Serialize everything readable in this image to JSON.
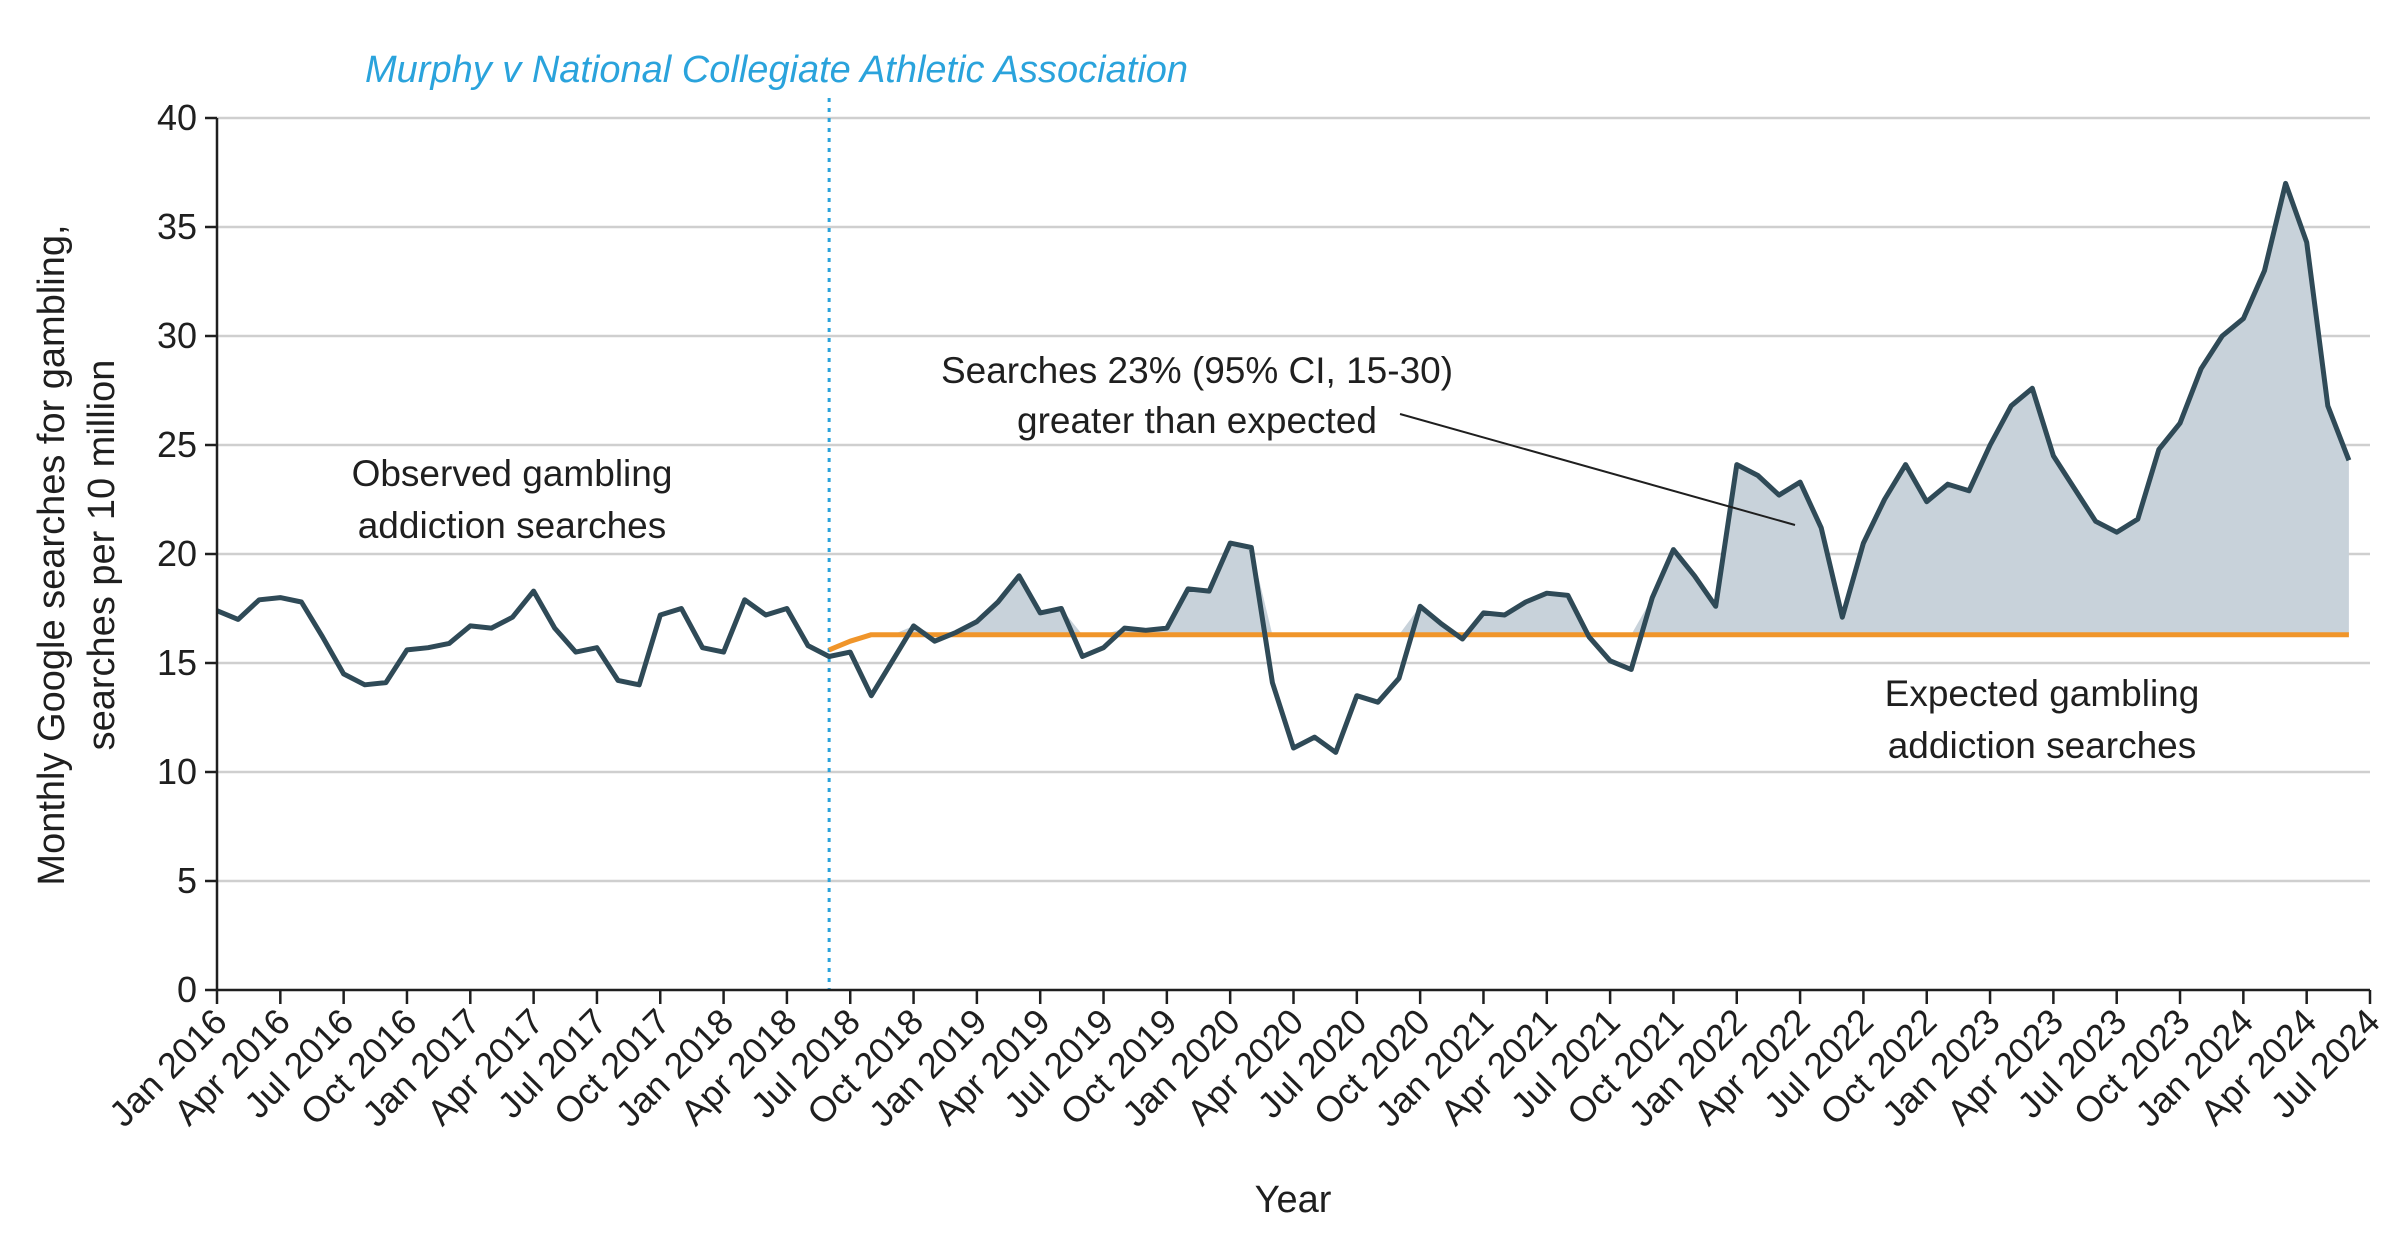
{
  "chart_data": {
    "type": "line",
    "title": "",
    "xlabel": "Year",
    "ylabel_lines": [
      "Monthly Google searches for gambling,",
      "searches per 10 million"
    ],
    "ylim": [
      0,
      40
    ],
    "yticks": [
      0,
      5,
      10,
      15,
      20,
      25,
      30,
      35,
      40
    ],
    "grid": true,
    "start": "2016-01",
    "xtick_labels": [
      "Jan 2016",
      "Apr 2016",
      "Jul 2016",
      "Oct 2016",
      "Jan 2017",
      "Apr 2017",
      "Jul 2017",
      "Oct 2017",
      "Jan 2018",
      "Apr 2018",
      "Jul 2018",
      "Oct 2018",
      "Jan 2019",
      "Apr 2019",
      "Jul 2019",
      "Oct 2019",
      "Jan 2020",
      "Apr 2020",
      "Jul 2020",
      "Oct 2020",
      "Jan 2021",
      "Apr 2021",
      "Jul 2021",
      "Oct 2021",
      "Jan 2022",
      "Apr 2022",
      "Jul 2022",
      "Oct 2022",
      "Jan 2023",
      "Apr 2023",
      "Jul 2023",
      "Oct 2023",
      "Jan 2024",
      "Apr 2024",
      "Jul 2024"
    ],
    "xtick_step_months": 3,
    "event": {
      "label": "Murphy v National Collegiate Athletic Association",
      "month_index": 29
    },
    "series": [
      {
        "name": "Observed gambling addiction searches",
        "color": "#2f4a57",
        "start_index": 0,
        "values": [
          17.4,
          17.0,
          17.9,
          18.0,
          17.8,
          16.2,
          14.5,
          14.0,
          14.1,
          15.6,
          15.7,
          15.9,
          16.7,
          16.6,
          17.1,
          18.3,
          16.6,
          15.5,
          15.7,
          14.2,
          14.0,
          17.2,
          17.5,
          15.7,
          15.5,
          17.9,
          17.2,
          17.5,
          15.8,
          15.3,
          15.5,
          13.5,
          15.1,
          16.7,
          16.0,
          16.4,
          16.9,
          17.8,
          19.0,
          17.3,
          17.5,
          15.3,
          15.7,
          16.6,
          16.5,
          16.6,
          18.4,
          18.3,
          20.5,
          20.3,
          14.1,
          11.1,
          11.6,
          10.9,
          13.5,
          13.2,
          14.3,
          17.6,
          16.8,
          16.1,
          17.3,
          17.2,
          17.8,
          18.2,
          18.1,
          16.2,
          15.1,
          14.7,
          18.0,
          20.2,
          19.0,
          17.6,
          24.1,
          23.6,
          22.7,
          23.3,
          21.2,
          17.1,
          20.5,
          22.5,
          24.1,
          22.4,
          23.2,
          22.9,
          25.0,
          26.8,
          27.6,
          24.5,
          23.0,
          21.5,
          21.0,
          21.6,
          24.8,
          26.0,
          28.5,
          30.0,
          30.8,
          33.0,
          37.0,
          34.3,
          26.8,
          24.3
        ]
      },
      {
        "name": "Expected gambling addiction searches",
        "color": "#f0952a",
        "start_index": 29,
        "values": [
          15.6,
          16.0,
          16.3,
          16.3,
          16.3,
          16.3,
          16.3,
          16.3,
          16.3,
          16.3,
          16.3,
          16.3,
          16.3,
          16.3,
          16.3,
          16.3,
          16.3,
          16.3,
          16.3,
          16.3,
          16.3,
          16.3,
          16.3,
          16.3,
          16.3,
          16.3,
          16.3,
          16.3,
          16.3,
          16.3,
          16.3,
          16.3,
          16.3,
          16.3,
          16.3,
          16.3,
          16.3,
          16.3,
          16.3,
          16.3,
          16.3,
          16.3,
          16.3,
          16.3,
          16.3,
          16.3,
          16.3,
          16.3,
          16.3,
          16.3,
          16.3,
          16.3,
          16.3,
          16.3,
          16.3,
          16.3,
          16.3,
          16.3,
          16.3,
          16.3,
          16.3,
          16.3,
          16.3,
          16.3,
          16.3,
          16.3,
          16.3,
          16.3,
          16.3,
          16.3,
          16.3,
          16.3,
          16.3
        ]
      }
    ],
    "fill_color": "#c8d2da",
    "annotations": {
      "observed_label": [
        "Observed gambling",
        "addiction searches"
      ],
      "expected_label": [
        "Expected gambling",
        "addiction searches"
      ],
      "excess_label": [
        "Searches 23% (95% CI, 15-30)",
        "greater than expected"
      ]
    }
  }
}
